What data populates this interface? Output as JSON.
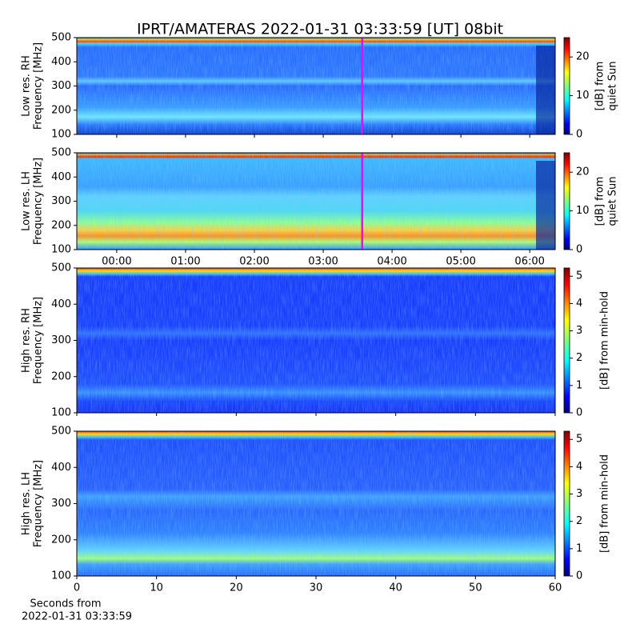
{
  "chart_data": [
    {
      "type": "spectrogram",
      "title": "IPRT/AMATERAS 2022-01-31 03:33:59 [UT]   08bit",
      "ylabel": [
        "Low res. RH",
        "Frequency [MHz]"
      ],
      "ylim": [
        100,
        500
      ],
      "yticks": [
        100,
        200,
        300,
        400,
        500
      ],
      "xlim": [
        -0.58,
        6.37
      ],
      "xticks": [
        0,
        1,
        2,
        3,
        4,
        5,
        6
      ],
      "xticklabels": false,
      "colorbar": {
        "label": [
          "[dB] from",
          "quiet Sun"
        ],
        "lim": [
          0,
          25
        ],
        "ticks": [
          0,
          10,
          20
        ]
      },
      "cursor": {
        "x": 3.566,
        "color": "#ff00ff"
      }
    },
    {
      "type": "spectrogram",
      "ylabel": [
        "Low res. LH",
        "Frequency [MHz]"
      ],
      "ylim": [
        100,
        500
      ],
      "yticks": [
        100,
        200,
        300,
        400,
        500
      ],
      "xlim": [
        -0.58,
        6.37
      ],
      "xticks": [
        {
          "value": 0,
          "label": "00:00"
        },
        {
          "value": 1,
          "label": "01:00"
        },
        {
          "value": 2,
          "label": "02:00"
        },
        {
          "value": 3,
          "label": "03:00"
        },
        {
          "value": 4,
          "label": "04:00"
        },
        {
          "value": 5,
          "label": "05:00"
        },
        {
          "value": 6,
          "label": "06:00"
        }
      ],
      "colorbar": {
        "label": [
          "[dB] from",
          "quiet Sun"
        ],
        "lim": [
          0,
          25
        ],
        "ticks": [
          0,
          10,
          20
        ]
      },
      "cursor": {
        "x": 3.566,
        "color": "#ff00ff"
      }
    },
    {
      "type": "spectrogram",
      "ylabel": [
        "High res. RH",
        "Frequency [MHz]"
      ],
      "ylim": [
        100,
        500
      ],
      "yticks": [
        100,
        200,
        300,
        400,
        500
      ],
      "xlim": [
        0,
        60
      ],
      "xticks": [
        0,
        10,
        20,
        30,
        40,
        50,
        60
      ],
      "xticklabels": false,
      "colorbar": {
        "label": [
          "[dB] from min-hold"
        ],
        "lim": [
          0,
          5.3
        ],
        "ticks": [
          0,
          1,
          2,
          3,
          4,
          5
        ]
      }
    },
    {
      "type": "spectrogram",
      "ylabel": [
        "High res. LH",
        "Frequency [MHz]"
      ],
      "ylim": [
        100,
        500
      ],
      "yticks": [
        100,
        200,
        300,
        400,
        500
      ],
      "xlim": [
        0,
        60
      ],
      "xticks": [
        0,
        10,
        20,
        30,
        40,
        50,
        60
      ],
      "xlabel": [
        "Seconds from",
        "2022-01-31 03:33:59"
      ],
      "colorbar": {
        "label": [
          "[dB] from min-hold"
        ],
        "lim": [
          0,
          5.3
        ],
        "ticks": [
          0,
          1,
          2,
          3,
          4,
          5
        ]
      }
    }
  ]
}
